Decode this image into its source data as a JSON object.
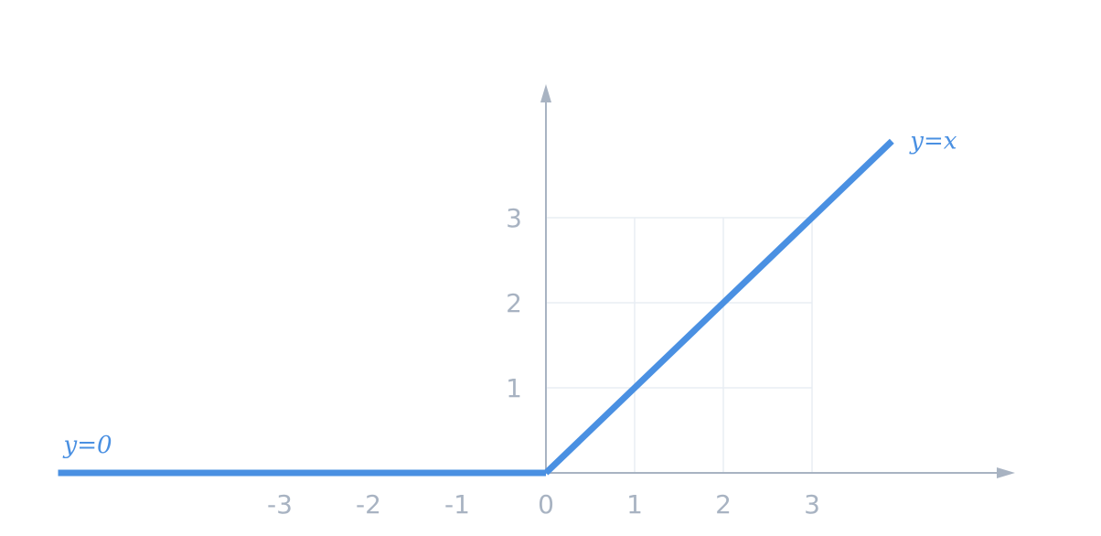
{
  "chart_data": {
    "type": "line",
    "xlim": [
      -5.5,
      5.4
    ],
    "ylim": [
      0,
      4.5
    ],
    "x_ticks": [
      -3,
      -2,
      -1,
      0,
      1,
      2,
      3
    ],
    "y_ticks": [
      1,
      2,
      3
    ],
    "grid": true,
    "axis_color": "#a8b3c2",
    "grid_color": "#e8edf3",
    "series": [
      {
        "label": "y=0",
        "color": "#4a90e2",
        "x": [
          -5.5,
          0
        ],
        "y": [
          0,
          0
        ]
      },
      {
        "label": "y=x",
        "color": "#4a90e2",
        "x": [
          0,
          3.9
        ],
        "y": [
          0,
          3.9
        ]
      }
    ]
  }
}
